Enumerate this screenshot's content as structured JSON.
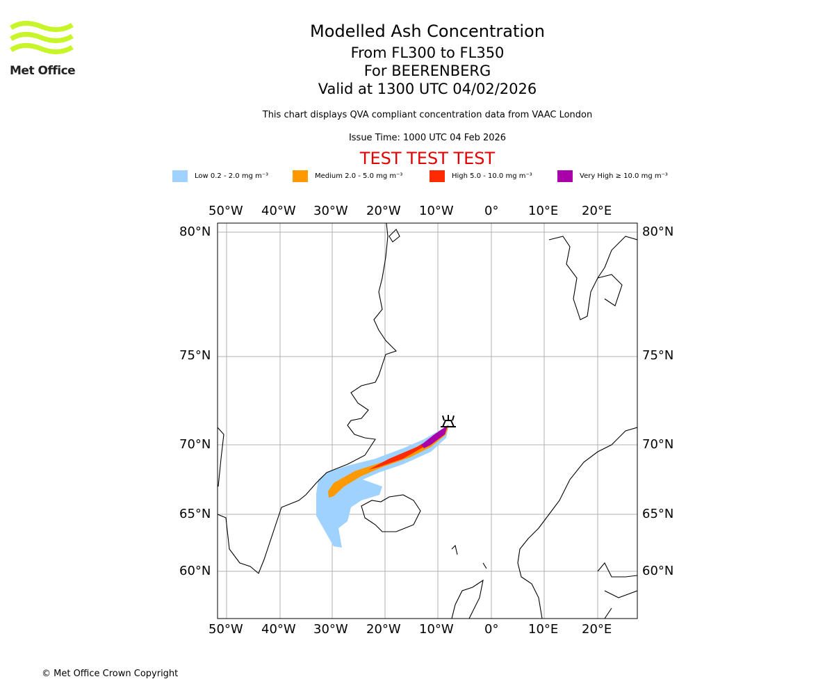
{
  "logo": {
    "text": "Met Office"
  },
  "title": {
    "main": "Modelled Ash Concentration",
    "levels": "From FL300 to FL350",
    "volcano": "For BEERENBERG",
    "valid": "Valid at 1300 UTC 04/02/2026",
    "description": "This chart displays QVA compliant concentration data from VAAC London",
    "issue_time": "Issue Time: 1000 UTC 04 Feb 2026",
    "test_banner": "TEST TEST TEST"
  },
  "legend": [
    {
      "label": "Low 0.2 - 2.0 mg m⁻³",
      "color": "#a0d2ff"
    },
    {
      "label": "Medium 2.0 - 5.0 mg m⁻³",
      "color": "#ff9900"
    },
    {
      "label": "High 5.0 - 10.0 mg m⁻³",
      "color": "#ff2a00"
    },
    {
      "label": "Very High ≥ 10.0 mg m⁻³",
      "color": "#aa00aa"
    }
  ],
  "map": {
    "lon_labels": [
      "50°W",
      "40°W",
      "30°W",
      "20°W",
      "10°W",
      "0°",
      "10°E",
      "20°E"
    ],
    "lat_labels": [
      "80°N",
      "75°N",
      "70°N",
      "65°N",
      "60°N"
    ],
    "volcano_marker": "volcano-icon"
  },
  "footer": {
    "copyright": "© Met Office Crown Copyright"
  }
}
